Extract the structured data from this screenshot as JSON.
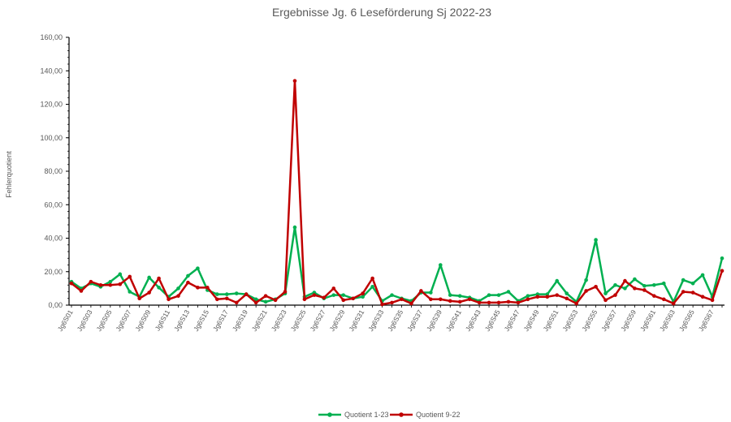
{
  "chart_data": {
    "type": "line",
    "title": "Ergebnisse Jg. 6 Leseförderung Sj 2022-23",
    "xlabel": "",
    "ylabel": "Fehlerquotient",
    "ylim": [
      0,
      160
    ],
    "yticks": [
      "0,00",
      "20,00",
      "40,00",
      "60,00",
      "80,00",
      "100,00",
      "120,00",
      "140,00",
      "160,00"
    ],
    "grid": false,
    "legend_position": "bottom",
    "categories": [
      "Jg6S01",
      "Jg6S02",
      "Jg6S03",
      "Jg6S04",
      "Jg6S05",
      "Jg6S06",
      "Jg6S07",
      "Jg6S08",
      "Jg6S09",
      "Jg6S10",
      "Jg6S11",
      "Jg6S12",
      "Jg6S13",
      "Jg6S14",
      "Jg6S15",
      "Jg6S16",
      "Jg6S17",
      "Jg6S18",
      "Jg6S19",
      "Jg6S20",
      "Jg6S21",
      "Jg6S22",
      "Jg6S23",
      "Jg6S24",
      "Jg6S25",
      "Jg6S26",
      "Jg6S27",
      "Jg6S28",
      "Jg6S29",
      "Jg6S30",
      "Jg6S31",
      "Jg6S32",
      "Jg6S33",
      "Jg6S34",
      "Jg6S35",
      "Jg6S36",
      "Jg6S37",
      "Jg6S38",
      "Jg6S39",
      "Jg6S40",
      "Jg6S41",
      "Jg6S42",
      "Jg6S43",
      "Jg6S44",
      "Jg6S45",
      "Jg6S46",
      "Jg6S47",
      "Jg6S48",
      "Jg6S49",
      "Jg6S50",
      "Jg6S51",
      "Jg6S52",
      "Jg6S53",
      "Jg6S54",
      "Jg6S55",
      "Jg6S56",
      "Jg6S57",
      "Jg6S58",
      "Jg6S59",
      "Jg6S60",
      "Jg6S61",
      "Jg6S62",
      "Jg6S63",
      "Jg6S64",
      "Jg6S65",
      "Jg6S66",
      "Jg6S67",
      "Jg6S68"
    ],
    "shown_tick_labels": [
      "Jg6S01",
      "Jg6S03",
      "Jg6S05",
      "Jg6S07",
      "Jg6S09",
      "Jg6S11",
      "Jg6S13",
      "Jg6S15",
      "Jg6S17",
      "Jg6S19",
      "Jg6S21",
      "Jg6S23",
      "Jg6S25",
      "Jg6S27",
      "Jg6S29",
      "Jg6S31",
      "Jg6S33",
      "Jg6S35",
      "Jg6S37",
      "Jg6S39",
      "Jg6S41",
      "Jg6S43",
      "Jg6S45",
      "Jg6S47",
      "Jg6S49",
      "Jg6S51",
      "Jg6S53",
      "Jg6S55",
      "Jg6S57",
      "Jg6S59",
      "Jg6S61",
      "Jg6S63",
      "Jg6S65",
      "Jg6S67"
    ],
    "series": [
      {
        "name": "Quotient 1-23",
        "color": "#00b050",
        "values": [
          14,
          10,
          13,
          11,
          14,
          18.5,
          8,
          5,
          16.5,
          10.5,
          5,
          10,
          17.5,
          22,
          9,
          6.5,
          6.5,
          7,
          6.5,
          3.5,
          2,
          3.5,
          7,
          46.5,
          5,
          7.5,
          4,
          6,
          6,
          4,
          5,
          11,
          2.5,
          6,
          4,
          2.5,
          7.5,
          7.5,
          24,
          6,
          5.5,
          4.5,
          2.5,
          6,
          6,
          8,
          2.5,
          5.5,
          6.5,
          6.5,
          14.5,
          7,
          2,
          15,
          39,
          7,
          12,
          10,
          15.5,
          11.5,
          12,
          13,
          2,
          15,
          13,
          18,
          5,
          28
        ]
      },
      {
        "name": "Quotient 9-22",
        "color": "#c00000",
        "values": [
          13,
          8.5,
          14,
          12,
          12,
          12.5,
          17,
          4,
          7.5,
          16,
          3.5,
          5.5,
          13.5,
          10.5,
          10.5,
          3.5,
          4,
          1.5,
          6.5,
          1.5,
          5.5,
          3,
          8,
          134,
          3.5,
          6,
          4.5,
          10,
          3,
          4,
          7,
          16,
          0.5,
          1.5,
          3.5,
          1,
          8.5,
          3.5,
          3.5,
          2.5,
          2,
          3.5,
          1.5,
          1.5,
          1.5,
          2,
          1.5,
          3.5,
          5,
          5,
          6,
          4,
          1,
          8.5,
          11,
          3,
          6,
          14.5,
          10,
          9,
          5.5,
          3.5,
          1,
          8,
          7.5,
          5,
          3,
          20.5
        ]
      }
    ]
  }
}
